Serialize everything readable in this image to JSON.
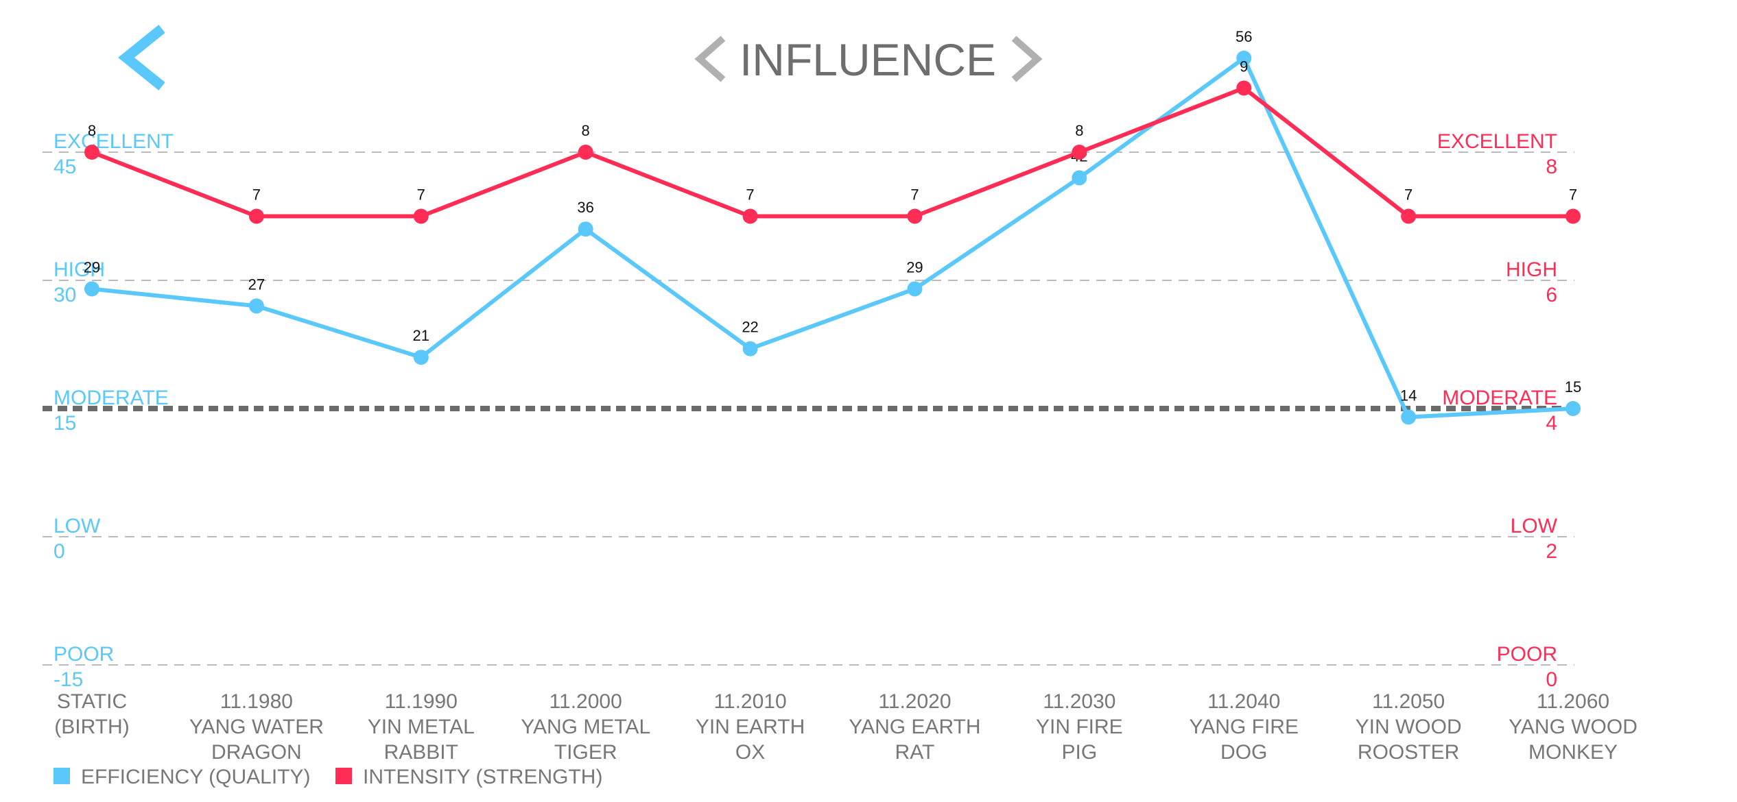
{
  "header": {
    "title": "INFLUENCE",
    "back_icon": "chevron-left-icon",
    "prev_icon": "chevron-left-icon",
    "next_icon": "chevron-right-icon"
  },
  "colors": {
    "efficiency": "#5AC8FA",
    "intensity": "#FF2D55",
    "gridline": "#bbbbbb",
    "threshold": "#6b6b6b",
    "nav_gray": "#b0b0b0",
    "text_gray": "#777777"
  },
  "chart_data": {
    "type": "line",
    "categories": [
      [
        "STATIC",
        "(BIRTH)"
      ],
      [
        "11.1980",
        "YANG WATER",
        "DRAGON"
      ],
      [
        "11.1990",
        "YIN METAL",
        "RABBIT"
      ],
      [
        "11.2000",
        "YANG METAL",
        "TIGER"
      ],
      [
        "11.2010",
        "YIN EARTH",
        "OX"
      ],
      [
        "11.2020",
        "YANG EARTH",
        "RAT"
      ],
      [
        "11.2030",
        "YIN FIRE",
        "PIG"
      ],
      [
        "11.2040",
        "YANG FIRE",
        "DOG"
      ],
      [
        "11.2050",
        "YIN WOOD",
        "ROOSTER"
      ],
      [
        "11.2060",
        "YANG WOOD",
        "MONKEY"
      ]
    ],
    "series": [
      {
        "name": "EFFICIENCY (QUALITY)",
        "axis": "left",
        "values": [
          29,
          27,
          21,
          36,
          22,
          29,
          42,
          56,
          14,
          15
        ]
      },
      {
        "name": "INTENSITY (STRENGTH)",
        "axis": "right",
        "values": [
          8,
          7,
          7,
          8,
          7,
          7,
          8,
          9,
          7,
          7
        ]
      }
    ],
    "left_axis": {
      "ylim": [
        -15,
        60
      ],
      "ticks": [
        {
          "label": "EXCELLENT",
          "value": 45
        },
        {
          "label": "HIGH",
          "value": 30
        },
        {
          "label": "MODERATE",
          "value": 15
        },
        {
          "label": "LOW",
          "value": 0
        },
        {
          "label": "POOR",
          "value": -15
        }
      ]
    },
    "right_axis": {
      "ylim": [
        0,
        10
      ],
      "ticks": [
        {
          "label": "EXCELLENT",
          "value": 8
        },
        {
          "label": "HIGH",
          "value": 6
        },
        {
          "label": "MODERATE",
          "value": 4
        },
        {
          "label": "LOW",
          "value": 2
        },
        {
          "label": "POOR",
          "value": 0
        }
      ]
    },
    "threshold_line": 15,
    "grid": true,
    "legend_position": "bottom-left"
  }
}
